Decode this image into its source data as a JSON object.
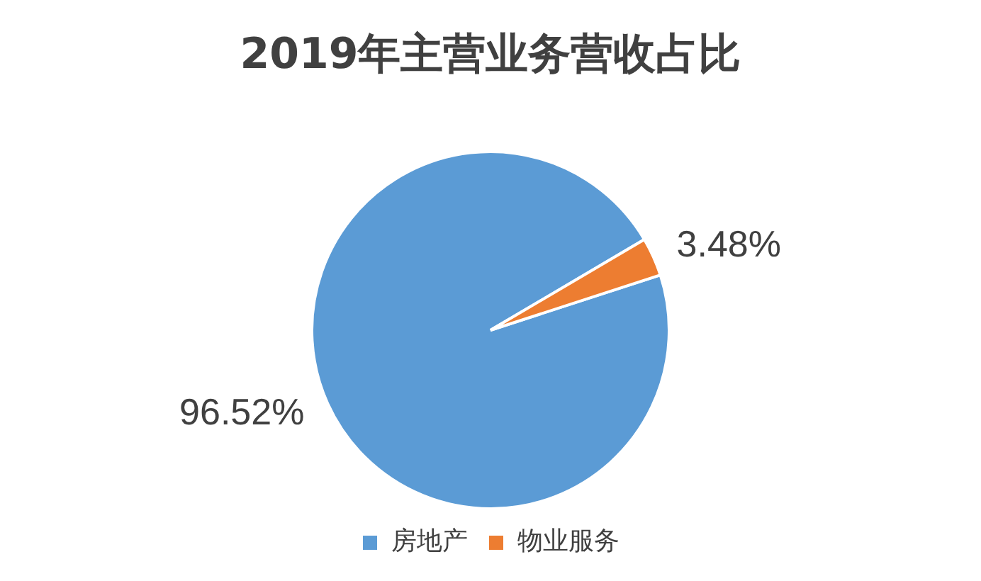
{
  "chart_data": {
    "type": "pie",
    "title": "2019年主营业务营收占比",
    "categories": [
      "房地产",
      "物业服务"
    ],
    "values": [
      96.52,
      3.48
    ],
    "colors": [
      "#5b9bd5",
      "#ed7d31"
    ],
    "value_labels": [
      "96.52%",
      "3.48%"
    ],
    "legend": "bottom"
  }
}
